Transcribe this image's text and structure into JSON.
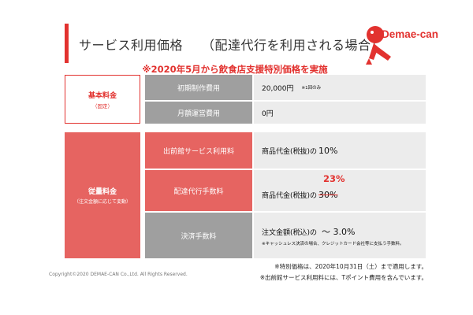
{
  "header": {
    "title": "サービス利用価格",
    "subtitle": "（配達代行を利用される場合）",
    "banner": "※2020年5月から飲食店支援特別価格を実施"
  },
  "logo": {
    "text": "Demae-can",
    "color": "#e2322f"
  },
  "groups": {
    "basic": {
      "label": "基本料金",
      "paren": "（固定）"
    },
    "usage": {
      "label": "従量料金",
      "paren": "（注文金額に応じて変動）"
    }
  },
  "rows": [
    {
      "label": "初期制作費用",
      "value": "20,000円",
      "note": "※1回のみ"
    },
    {
      "label": "月額運営費用",
      "value": "0円"
    },
    {
      "label": "出前館サービス利用料",
      "value_prefix": "商品代金(税抜)の",
      "value_big": "10%"
    },
    {
      "label": "配達代行手数料",
      "value_prefix": "商品代金(税抜)の",
      "old_rate": "30%",
      "new_rate": "23%"
    },
    {
      "label": "決済手数料",
      "value_prefix": "注文金額(税込)の",
      "value_big": "～ 3.0%",
      "note": "※キャッシュレス決済の場合、クレジットカード会社等に支払う手数料。"
    }
  ],
  "footer": {
    "copyright": "Copyright©2020 DEMAE-CAN Co.,Ltd. All Rights Reserved.",
    "notes": [
      "※特別価格は、2020年10月31日（土）まで適用します。",
      "※出前館サービス利用料には、Tポイント費用を含んでいます。"
    ]
  },
  "colors": {
    "accent": "#e2322f",
    "red_cell": "#e66461",
    "gray_cell": "#9f9f9f",
    "value_bg": "#ececec"
  }
}
